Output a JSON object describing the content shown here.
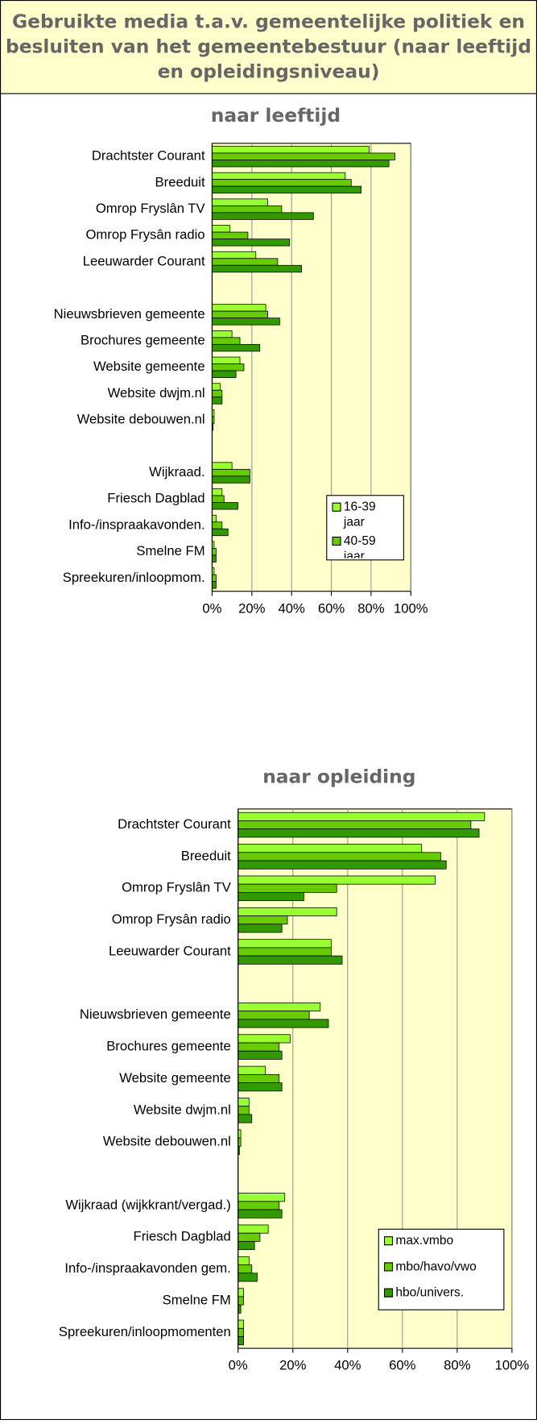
{
  "header": {
    "title": "Gebruikte media t.a.v. gemeentelijke politiek en besluiten van het gemeentebestuur (naar leeftijd en opleidingsniveau)"
  },
  "chart_data": [
    {
      "type": "bar",
      "orientation": "horizontal",
      "title": "naar leeftijd",
      "categories": [
        "Drachtster Courant",
        "Breeduit",
        "Omrop Fryslân TV",
        "Omrop Frysân radio",
        "Leeuwarder Courant",
        null,
        "Nieuwsbrieven gemeente",
        "Brochures gemeente",
        "Website gemeente",
        "Website dwjm.nl",
        "Website debouwen.nl",
        null,
        "Wijkraad.",
        "Friesch Dagblad",
        "Info-/inspraakavonden.",
        "Smelne FM",
        "Spreekuren/inloopmom."
      ],
      "series": [
        {
          "name": "16-39 jaar",
          "color": "#99ff33",
          "values": [
            79,
            67,
            28,
            9,
            22,
            null,
            27,
            10,
            14,
            4,
            1,
            null,
            10,
            5,
            2,
            1,
            1
          ]
        },
        {
          "name": "40-59 jaar",
          "color": "#66cc00",
          "values": [
            92,
            70,
            35,
            18,
            33,
            null,
            28,
            14,
            16,
            5,
            1,
            null,
            19,
            6,
            5,
            2,
            2
          ]
        },
        {
          "color": "#339900",
          "values": [
            89,
            75,
            51,
            39,
            45,
            null,
            34,
            24,
            12,
            5,
            0.5,
            null,
            19,
            13,
            8,
            2,
            2
          ]
        }
      ],
      "xlim": [
        0,
        100
      ],
      "xticks": [
        {
          "value": 0,
          "label": "0%"
        },
        {
          "value": 20,
          "label": "20%"
        },
        {
          "value": 40,
          "label": "40%"
        },
        {
          "value": 60,
          "label": "60%"
        },
        {
          "value": 80,
          "label": "80%"
        },
        {
          "value": 100,
          "label": "100%"
        }
      ],
      "grid": true,
      "legend": "lower right"
    },
    {
      "type": "bar",
      "orientation": "horizontal",
      "title": "naar opleiding",
      "categories": [
        "Drachtster Courant",
        "Breeduit",
        "Omrop Fryslân TV",
        "Omrop Frysân radio",
        "Leeuwarder Courant",
        null,
        "Nieuwsbrieven gemeente",
        "Brochures gemeente",
        "Website gemeente",
        "Website dwjm.nl",
        "Website debouwen.nl",
        null,
        "Wijkraad (wijkkrant/vergad.)",
        "Friesch Dagblad",
        "Info-/inspraakavonden gem.",
        "Smelne FM",
        "Spreekuren/inloopmomenten"
      ],
      "series": [
        {
          "name": "max.vmbo",
          "color": "#99ff33",
          "values": [
            90,
            67,
            72,
            36,
            34,
            null,
            30,
            19,
            10,
            4,
            1,
            null,
            17,
            11,
            4,
            2,
            2
          ]
        },
        {
          "name": "mbo/havo/vwo",
          "color": "#66cc00",
          "values": [
            85,
            74,
            36,
            18,
            34,
            null,
            26,
            15,
            15,
            4,
            1,
            null,
            15,
            8,
            5,
            2,
            2
          ]
        },
        {
          "name": "hbo/univers.",
          "color": "#339900",
          "values": [
            88,
            76,
            24,
            16,
            38,
            null,
            33,
            16,
            16,
            5,
            0.5,
            null,
            16,
            6,
            7,
            1,
            2
          ]
        }
      ],
      "xlim": [
        0,
        100
      ],
      "xticks": [
        {
          "value": 0,
          "label": "0%"
        },
        {
          "value": 20,
          "label": "20%"
        },
        {
          "value": 40,
          "label": "40%"
        },
        {
          "value": 60,
          "label": "60%"
        },
        {
          "value": 80,
          "label": "80%"
        },
        {
          "value": 100,
          "label": "100%"
        }
      ],
      "grid": true,
      "legend": "lower right"
    }
  ]
}
